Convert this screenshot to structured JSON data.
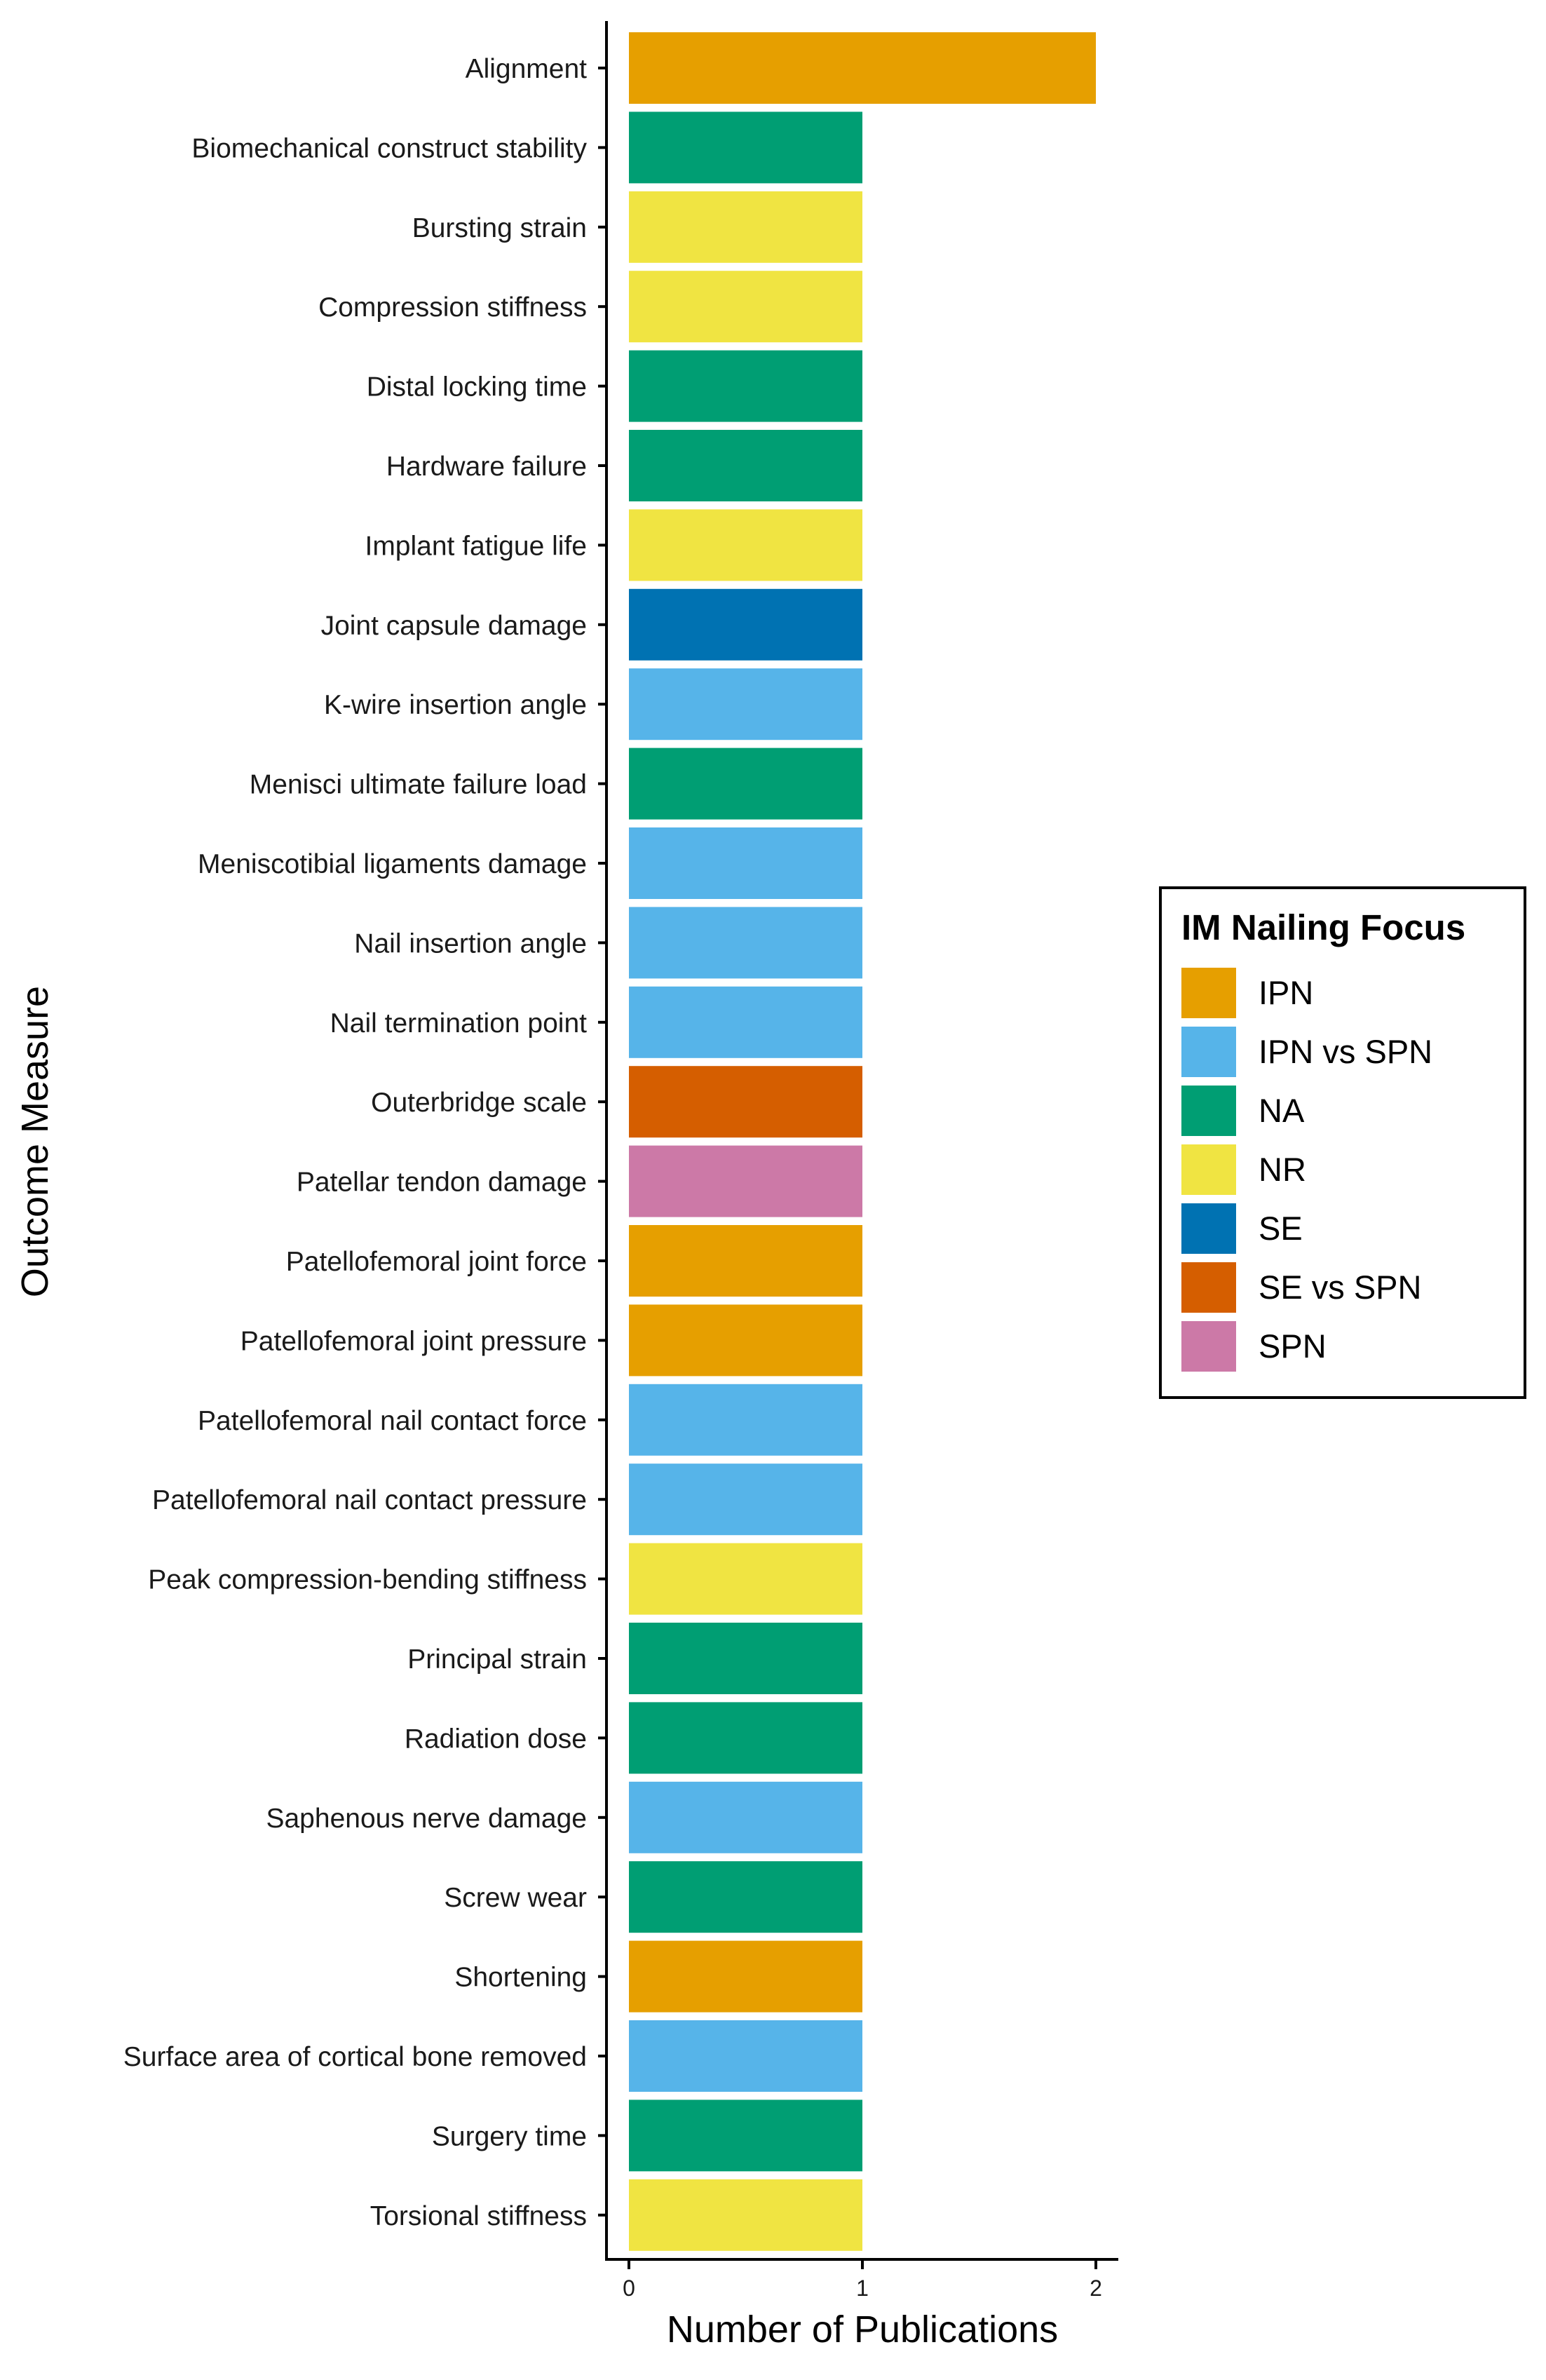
{
  "chart_data": {
    "type": "bar",
    "orientation": "horizontal",
    "xlabel": "Number of Publications",
    "ylabel": "Outcome Measure",
    "xlim": [
      0,
      2
    ],
    "x_ticks": [
      "0",
      "1",
      "2"
    ],
    "grid": false,
    "legend": {
      "title": "IM Nailing Focus",
      "placement": "right",
      "entries": [
        {
          "label": "IPN",
          "color": "#E69F00"
        },
        {
          "label": "IPN vs SPN",
          "color": "#56B4E9"
        },
        {
          "label": "NA",
          "color": "#009E73"
        },
        {
          "label": "NR",
          "color": "#F0E442"
        },
        {
          "label": "SE",
          "color": "#0072B2"
        },
        {
          "label": "SE vs SPN",
          "color": "#D55E00"
        },
        {
          "label": "SPN",
          "color": "#CC79A7"
        }
      ]
    },
    "bars": [
      {
        "category": "Alignment",
        "value": 2,
        "group": "IPN"
      },
      {
        "category": "Biomechanical construct stability",
        "value": 1,
        "group": "NA"
      },
      {
        "category": "Bursting strain",
        "value": 1,
        "group": "NR"
      },
      {
        "category": "Compression stiffness",
        "value": 1,
        "group": "NR"
      },
      {
        "category": "Distal locking time",
        "value": 1,
        "group": "NA"
      },
      {
        "category": "Hardware failure",
        "value": 1,
        "group": "NA"
      },
      {
        "category": "Implant fatigue life",
        "value": 1,
        "group": "NR"
      },
      {
        "category": "Joint capsule damage",
        "value": 1,
        "group": "SE"
      },
      {
        "category": "K-wire insertion angle",
        "value": 1,
        "group": "IPN vs SPN"
      },
      {
        "category": "Menisci ultimate failure load",
        "value": 1,
        "group": "NA"
      },
      {
        "category": "Meniscotibial ligaments damage",
        "value": 1,
        "group": "IPN vs SPN"
      },
      {
        "category": "Nail insertion angle",
        "value": 1,
        "group": "IPN vs SPN"
      },
      {
        "category": "Nail termination point",
        "value": 1,
        "group": "IPN vs SPN"
      },
      {
        "category": "Outerbridge scale",
        "value": 1,
        "group": "SE vs SPN"
      },
      {
        "category": "Patellar tendon damage",
        "value": 1,
        "group": "SPN"
      },
      {
        "category": "Patellofemoral joint force",
        "value": 1,
        "group": "IPN"
      },
      {
        "category": "Patellofemoral joint pressure",
        "value": 1,
        "group": "IPN"
      },
      {
        "category": "Patellofemoral nail contact force",
        "value": 1,
        "group": "IPN vs SPN"
      },
      {
        "category": "Patellofemoral nail contact pressure",
        "value": 1,
        "group": "IPN vs SPN"
      },
      {
        "category": "Peak compression-bending stiffness",
        "value": 1,
        "group": "NR"
      },
      {
        "category": "Principal strain",
        "value": 1,
        "group": "NA"
      },
      {
        "category": "Radiation dose",
        "value": 1,
        "group": "NA"
      },
      {
        "category": "Saphenous nerve damage",
        "value": 1,
        "group": "IPN vs SPN"
      },
      {
        "category": "Screw wear",
        "value": 1,
        "group": "NA"
      },
      {
        "category": "Shortening",
        "value": 1,
        "group": "IPN"
      },
      {
        "category": "Surface area of cortical bone removed",
        "value": 1,
        "group": "IPN vs SPN"
      },
      {
        "category": "Surgery time",
        "value": 1,
        "group": "NA"
      },
      {
        "category": "Torsional stiffness",
        "value": 1,
        "group": "NR"
      }
    ]
  }
}
